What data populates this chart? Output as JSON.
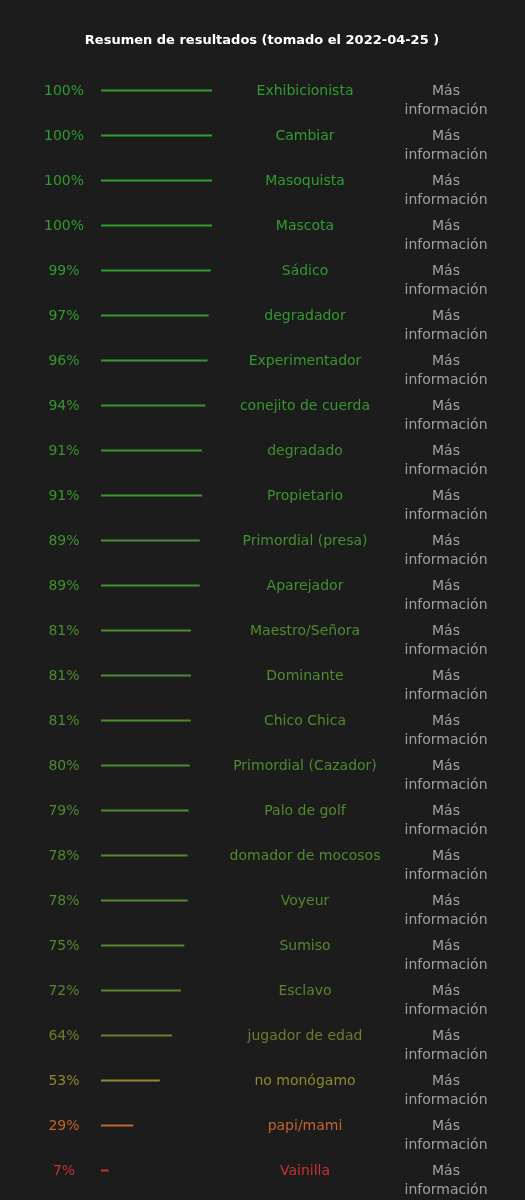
{
  "chart_data": {
    "type": "bar",
    "orientation": "horizontal",
    "title": "Resumen de resultados (tomado el 2022-04-25 )",
    "categories": [
      "Exhibicionista",
      "Cambiar",
      "Masoquista",
      "Mascota",
      "Sádico",
      "degradador",
      "Experimentador",
      "conejito de cuerda",
      "degradado",
      "Propietario",
      "Primordial (presa)",
      "Aparejador",
      "Maestro/Señora",
      "Dominante",
      "Chico Chica",
      "Primordial (Cazador)",
      "Palo de golf",
      "domador de mocosos",
      "Voyeur",
      "Sumiso",
      "Esclavo",
      "jugador de edad",
      "no monógamo",
      "papi/mami",
      "Vainilla"
    ],
    "values": [
      100,
      100,
      100,
      100,
      99,
      97,
      96,
      94,
      91,
      91,
      89,
      89,
      81,
      81,
      81,
      80,
      79,
      78,
      78,
      75,
      72,
      64,
      53,
      29,
      7
    ],
    "value_labels": [
      "100%",
      "100%",
      "100%",
      "100%",
      "99%",
      "97%",
      "96%",
      "94%",
      "91%",
      "91%",
      "89%",
      "89%",
      "81%",
      "81%",
      "81%",
      "80%",
      "79%",
      "78%",
      "78%",
      "75%",
      "72%",
      "64%",
      "53%",
      "29%",
      "7%"
    ],
    "colors": [
      "#2e9e2e",
      "#2e9e2e",
      "#2e9e2e",
      "#2e9e2e",
      "#2f9c2e",
      "#339a2e",
      "#34992e",
      "#37972e",
      "#3c942e",
      "#3c942e",
      "#40922e",
      "#40922e",
      "#4c8c2e",
      "#4c8c2e",
      "#4c8c2e",
      "#4e8b2e",
      "#508a2e",
      "#52892e",
      "#52892e",
      "#58862e",
      "#5e832e",
      "#6e7c2e",
      "#8c8c2a",
      "#c0662e",
      "#c83232"
    ],
    "annotations": [
      "Más información",
      "Más información",
      "Más información",
      "Más información",
      "Más información",
      "Más información",
      "Más información",
      "Más información",
      "Más información",
      "Más información",
      "Más información",
      "Más información",
      "Más información",
      "Más información",
      "Más información",
      "Más información",
      "Más información",
      "Más información",
      "Más información",
      "Más información",
      "Más información",
      "Más información",
      "Más información",
      "Más información",
      "Más información"
    ],
    "xlim": [
      0,
      100
    ]
  }
}
